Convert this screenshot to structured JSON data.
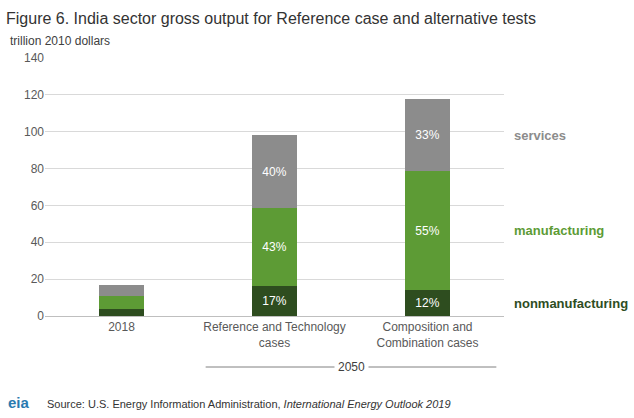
{
  "chart_data": {
    "type": "bar",
    "title": "Figure 6. India sector gross output for Reference case and alternative tests",
    "y_label": "trillion 2010 dollars",
    "categories": [
      "2018",
      "Reference and Technology cases",
      "Composition and Combination cases"
    ],
    "category_group": {
      "label": "2050",
      "categories": [
        "Reference and Technology cases",
        "Composition and Combination cases"
      ]
    },
    "series": [
      {
        "name": "nonmanufacturing",
        "color": "#2e4d1f",
        "values": [
          4,
          16.5,
          14
        ],
        "share_labels": [
          null,
          "17%",
          "12%"
        ]
      },
      {
        "name": "manufacturing",
        "color": "#5d9b35",
        "values": [
          7,
          42,
          64.5
        ],
        "share_labels": [
          null,
          "43%",
          "55%"
        ]
      },
      {
        "name": "services",
        "color": "#8c8c8c",
        "values": [
          6,
          39.5,
          39
        ],
        "share_labels": [
          null,
          "40%",
          "33%"
        ]
      }
    ],
    "stacked": true,
    "ylim": [
      0,
      140
    ],
    "yticks": [
      0,
      20,
      40,
      60,
      80,
      100,
      120,
      140
    ],
    "grid": true,
    "legend": "right",
    "source": {
      "text": "Source: U.S. Energy Information Administration,",
      "publication": "International Energy Outlook 2019"
    },
    "logo": "eia"
  }
}
